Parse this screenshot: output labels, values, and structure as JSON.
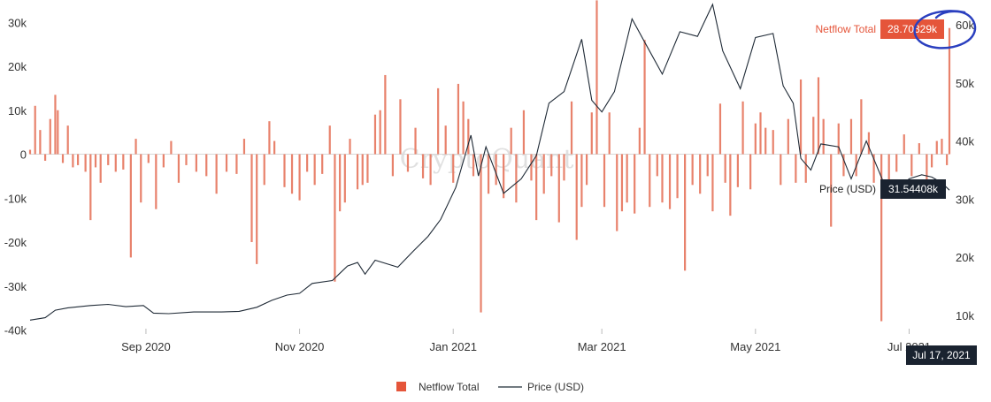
{
  "chart_data": {
    "type": "bar+line",
    "watermark": "CryptoQuant",
    "x_range": [
      "2020-07-17",
      "2021-07-17"
    ],
    "x_ticks": [
      "Sep 2020",
      "Nov 2020",
      "Jan 2021",
      "Mar 2021",
      "May 2021",
      "Jul 2021"
    ],
    "y_left": {
      "range": [
        -40000,
        35000
      ],
      "ticks": [
        "30k",
        "20k",
        "10k",
        "0",
        "-10k",
        "-20k",
        "-30k",
        "-40k"
      ]
    },
    "y_right": {
      "range": [
        5000,
        65000
      ],
      "ticks": [
        "60k",
        "50k",
        "40k",
        "30k",
        "20k",
        "10k"
      ]
    },
    "series": [
      {
        "name": "Netflow Total",
        "type": "bar",
        "axis": "left",
        "color": "#e8826c",
        "points": [
          [
            "2020-07-17",
            1000
          ],
          [
            "2020-07-19",
            11000
          ],
          [
            "2020-07-21",
            5500
          ],
          [
            "2020-07-23",
            -1500
          ],
          [
            "2020-07-25",
            8000
          ],
          [
            "2020-07-27",
            13500
          ],
          [
            "2020-07-28",
            10000
          ],
          [
            "2020-07-30",
            -2000
          ],
          [
            "2020-08-01",
            6500
          ],
          [
            "2020-08-03",
            -3000
          ],
          [
            "2020-08-05",
            -2500
          ],
          [
            "2020-08-08",
            -4000
          ],
          [
            "2020-08-10",
            -15000
          ],
          [
            "2020-08-12",
            -3000
          ],
          [
            "2020-08-14",
            -6500
          ],
          [
            "2020-08-17",
            -2500
          ],
          [
            "2020-08-20",
            -4000
          ],
          [
            "2020-08-23",
            -3500
          ],
          [
            "2020-08-26",
            -23500
          ],
          [
            "2020-08-28",
            3500
          ],
          [
            "2020-08-30",
            -11000
          ],
          [
            "2020-09-02",
            -2000
          ],
          [
            "2020-09-05",
            -12500
          ],
          [
            "2020-09-08",
            -3000
          ],
          [
            "2020-09-11",
            3000
          ],
          [
            "2020-09-14",
            -6500
          ],
          [
            "2020-09-17",
            -2500
          ],
          [
            "2020-09-21",
            -4000
          ],
          [
            "2020-09-25",
            -5000
          ],
          [
            "2020-09-29",
            -9000
          ],
          [
            "2020-10-03",
            -4000
          ],
          [
            "2020-10-07",
            -4500
          ],
          [
            "2020-10-10",
            3500
          ],
          [
            "2020-10-13",
            -20000
          ],
          [
            "2020-10-15",
            -25000
          ],
          [
            "2020-10-18",
            -7000
          ],
          [
            "2020-10-20",
            7500
          ],
          [
            "2020-10-22",
            3000
          ],
          [
            "2020-10-26",
            -7500
          ],
          [
            "2020-10-29",
            -9000
          ],
          [
            "2020-11-01",
            -10500
          ],
          [
            "2020-11-04",
            -4000
          ],
          [
            "2020-11-07",
            -7000
          ],
          [
            "2020-11-10",
            -4500
          ],
          [
            "2020-11-13",
            6500
          ],
          [
            "2020-11-15",
            -29000
          ],
          [
            "2020-11-17",
            -13000
          ],
          [
            "2020-11-19",
            -11000
          ],
          [
            "2020-11-21",
            3500
          ],
          [
            "2020-11-24",
            -8000
          ],
          [
            "2020-11-26",
            -7000
          ],
          [
            "2020-11-28",
            -6500
          ],
          [
            "2020-12-01",
            9000
          ],
          [
            "2020-12-03",
            10000
          ],
          [
            "2020-12-05",
            18000
          ],
          [
            "2020-12-08",
            -5000
          ],
          [
            "2020-12-11",
            12500
          ],
          [
            "2020-12-14",
            -4000
          ],
          [
            "2020-12-17",
            6000
          ],
          [
            "2020-12-20",
            -5500
          ],
          [
            "2020-12-23",
            -7000
          ],
          [
            "2020-12-26",
            15000
          ],
          [
            "2020-12-29",
            6500
          ],
          [
            "2021-01-01",
            -6500
          ],
          [
            "2021-01-03",
            16000
          ],
          [
            "2021-01-05",
            12000
          ],
          [
            "2021-01-07",
            8000
          ],
          [
            "2021-01-09",
            -5000
          ],
          [
            "2021-01-12",
            -36000
          ],
          [
            "2021-01-15",
            -9000
          ],
          [
            "2021-01-18",
            -7000
          ],
          [
            "2021-01-21",
            -10000
          ],
          [
            "2021-01-24",
            6000
          ],
          [
            "2021-01-26",
            -11000
          ],
          [
            "2021-01-29",
            10000
          ],
          [
            "2021-02-01",
            -6000
          ],
          [
            "2021-02-03",
            -15000
          ],
          [
            "2021-02-06",
            -9000
          ],
          [
            "2021-02-09",
            -5000
          ],
          [
            "2021-02-12",
            -15500
          ],
          [
            "2021-02-14",
            -6000
          ],
          [
            "2021-02-17",
            12000
          ],
          [
            "2021-02-19",
            -19500
          ],
          [
            "2021-02-21",
            -12000
          ],
          [
            "2021-02-23",
            -7000
          ],
          [
            "2021-02-25",
            9500
          ],
          [
            "2021-02-27",
            35000
          ],
          [
            "2021-03-02",
            -12000
          ],
          [
            "2021-03-04",
            9500
          ],
          [
            "2021-03-07",
            -17500
          ],
          [
            "2021-03-09",
            -13000
          ],
          [
            "2021-03-11",
            -11000
          ],
          [
            "2021-03-14",
            -13500
          ],
          [
            "2021-03-16",
            6000
          ],
          [
            "2021-03-18",
            26000
          ],
          [
            "2021-03-20",
            -12000
          ],
          [
            "2021-03-23",
            -5000
          ],
          [
            "2021-03-25",
            -11000
          ],
          [
            "2021-03-28",
            -12500
          ],
          [
            "2021-03-31",
            -10000
          ],
          [
            "2021-04-03",
            -26500
          ],
          [
            "2021-04-06",
            -7000
          ],
          [
            "2021-04-09",
            -9000
          ],
          [
            "2021-04-12",
            -5000
          ],
          [
            "2021-04-14",
            -13000
          ],
          [
            "2021-04-17",
            11500
          ],
          [
            "2021-04-19",
            -6500
          ],
          [
            "2021-04-21",
            -14000
          ],
          [
            "2021-04-24",
            -7500
          ],
          [
            "2021-04-26",
            12000
          ],
          [
            "2021-04-29",
            -8000
          ],
          [
            "2021-05-01",
            7000
          ],
          [
            "2021-05-03",
            9500
          ],
          [
            "2021-05-05",
            6000
          ],
          [
            "2021-05-08",
            5500
          ],
          [
            "2021-05-11",
            -7000
          ],
          [
            "2021-05-14",
            8000
          ],
          [
            "2021-05-17",
            -6500
          ],
          [
            "2021-05-19",
            17000
          ],
          [
            "2021-05-21",
            -6500
          ],
          [
            "2021-05-24",
            8500
          ],
          [
            "2021-05-26",
            17500
          ],
          [
            "2021-05-28",
            8000
          ],
          [
            "2021-05-31",
            -16500
          ],
          [
            "2021-06-03",
            7000
          ],
          [
            "2021-06-05",
            -5000
          ],
          [
            "2021-06-08",
            8000
          ],
          [
            "2021-06-10",
            -5000
          ],
          [
            "2021-06-12",
            12500
          ],
          [
            "2021-06-15",
            5000
          ],
          [
            "2021-06-17",
            -6500
          ],
          [
            "2021-06-20",
            -38000
          ],
          [
            "2021-06-23",
            -7500
          ],
          [
            "2021-06-26",
            -4000
          ],
          [
            "2021-06-29",
            4500
          ],
          [
            "2021-07-02",
            -5000
          ],
          [
            "2021-07-05",
            2500
          ],
          [
            "2021-07-08",
            -6000
          ],
          [
            "2021-07-10",
            -3000
          ],
          [
            "2021-07-12",
            3000
          ],
          [
            "2021-07-14",
            3500
          ],
          [
            "2021-07-16",
            -2500
          ],
          [
            "2021-07-17",
            28700
          ]
        ]
      },
      {
        "name": "Price (USD)",
        "type": "line",
        "axis": "right",
        "color": "#1f2a36",
        "points": [
          [
            "2020-07-17",
            9200
          ],
          [
            "2020-07-23",
            9600
          ],
          [
            "2020-07-27",
            10900
          ],
          [
            "2020-08-01",
            11300
          ],
          [
            "2020-08-10",
            11700
          ],
          [
            "2020-08-17",
            11900
          ],
          [
            "2020-08-24",
            11500
          ],
          [
            "2020-08-31",
            11700
          ],
          [
            "2020-09-04",
            10400
          ],
          [
            "2020-09-10",
            10300
          ],
          [
            "2020-09-20",
            10600
          ],
          [
            "2020-10-01",
            10600
          ],
          [
            "2020-10-08",
            10700
          ],
          [
            "2020-10-15",
            11400
          ],
          [
            "2020-10-21",
            12600
          ],
          [
            "2020-10-27",
            13500
          ],
          [
            "2020-11-01",
            13800
          ],
          [
            "2020-11-06",
            15500
          ],
          [
            "2020-11-14",
            16000
          ],
          [
            "2020-11-20",
            18500
          ],
          [
            "2020-11-24",
            19100
          ],
          [
            "2020-11-27",
            17100
          ],
          [
            "2020-12-01",
            19500
          ],
          [
            "2020-12-10",
            18300
          ],
          [
            "2020-12-16",
            21000
          ],
          [
            "2020-12-22",
            23600
          ],
          [
            "2020-12-27",
            26500
          ],
          [
            "2021-01-02",
            32000
          ],
          [
            "2021-01-08",
            41000
          ],
          [
            "2021-01-11",
            34000
          ],
          [
            "2021-01-14",
            39000
          ],
          [
            "2021-01-21",
            31000
          ],
          [
            "2021-01-28",
            33500
          ],
          [
            "2021-02-03",
            37500
          ],
          [
            "2021-02-08",
            46500
          ],
          [
            "2021-02-14",
            48500
          ],
          [
            "2021-02-21",
            57500
          ],
          [
            "2021-02-25",
            47000
          ],
          [
            "2021-03-01",
            45000
          ],
          [
            "2021-03-06",
            48500
          ],
          [
            "2021-03-13",
            61000
          ],
          [
            "2021-03-18",
            57000
          ],
          [
            "2021-03-25",
            51500
          ],
          [
            "2021-04-01",
            58800
          ],
          [
            "2021-04-08",
            58000
          ],
          [
            "2021-04-14",
            63500
          ],
          [
            "2021-04-18",
            55500
          ],
          [
            "2021-04-25",
            49000
          ],
          [
            "2021-05-01",
            57800
          ],
          [
            "2021-05-08",
            58500
          ],
          [
            "2021-05-12",
            49500
          ],
          [
            "2021-05-16",
            46500
          ],
          [
            "2021-05-19",
            37000
          ],
          [
            "2021-05-23",
            35000
          ],
          [
            "2021-05-27",
            39500
          ],
          [
            "2021-06-03",
            39000
          ],
          [
            "2021-06-08",
            33500
          ],
          [
            "2021-06-14",
            40000
          ],
          [
            "2021-06-22",
            31700
          ],
          [
            "2021-06-26",
            31500
          ],
          [
            "2021-07-01",
            33500
          ],
          [
            "2021-07-06",
            34200
          ],
          [
            "2021-07-10",
            33800
          ],
          [
            "2021-07-14",
            32800
          ],
          [
            "2021-07-17",
            31544
          ]
        ]
      }
    ],
    "tooltips": {
      "netflow": {
        "label": "Netflow Total",
        "value": "28.70329k"
      },
      "price": {
        "label": "Price (USD)",
        "value": "31.54408k"
      },
      "date": "Jul 17, 2021"
    },
    "legend": {
      "placement": "bottom-center",
      "items": [
        "Netflow Total",
        "Price (USD)"
      ]
    },
    "annotation": "hand-drawn blue circle around netflow value and 60k tick",
    "colors": {
      "netflow": "#e8826c",
      "netflow_tag": "#e5553a",
      "price": "#1f2a36",
      "price_tag": "#1a2330",
      "annotation": "#2a3fbf"
    }
  }
}
